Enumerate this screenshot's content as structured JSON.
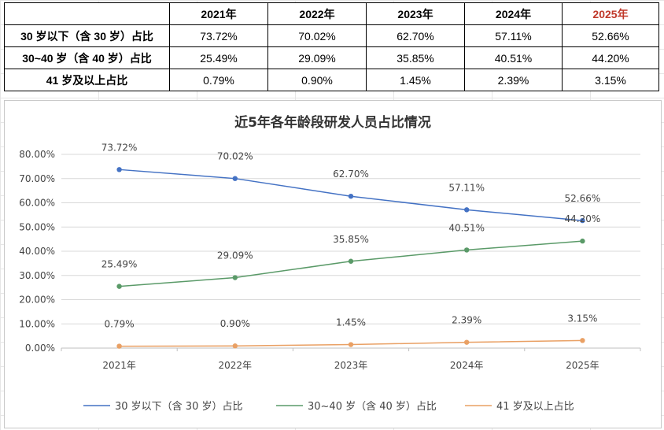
{
  "table": {
    "headers": [
      "",
      "2021年",
      "2022年",
      "2023年",
      "2024年",
      "2025年"
    ],
    "rows": [
      {
        "label": "30 岁以下（含 30 岁）占比",
        "values": [
          "73.72%",
          "70.02%",
          "62.70%",
          "57.11%",
          "52.66%"
        ]
      },
      {
        "label": "30~40 岁（含 40 岁）占比",
        "values": [
          "25.49%",
          "29.09%",
          "35.85%",
          "40.51%",
          "44.20%"
        ]
      },
      {
        "label": "41 岁及以上占比",
        "values": [
          "0.79%",
          "0.90%",
          "1.45%",
          "2.39%",
          "3.15%"
        ]
      }
    ],
    "highlight_color": "#c0392b"
  },
  "chart_data": {
    "type": "line",
    "title": "近5年各年龄段研发人员占比情况",
    "categories": [
      "2021年",
      "2022年",
      "2023年",
      "2024年",
      "2025年"
    ],
    "ylim": [
      0,
      80
    ],
    "yticks": [
      "0.00%",
      "10.00%",
      "20.00%",
      "30.00%",
      "40.00%",
      "50.00%",
      "60.00%",
      "70.00%",
      "80.00%"
    ],
    "grid": true,
    "legend_position": "bottom",
    "series": [
      {
        "name": "30 岁以下（含 30 岁）占比",
        "values": [
          73.72,
          70.02,
          62.7,
          57.11,
          52.66
        ],
        "labels": [
          "73.72%",
          "70.02%",
          "62.70%",
          "57.11%",
          "52.66%"
        ],
        "color": "#4472c4"
      },
      {
        "name": "30~40 岁（含 40 岁）占比",
        "values": [
          25.49,
          29.09,
          35.85,
          40.51,
          44.2
        ],
        "labels": [
          "25.49%",
          "29.09%",
          "35.85%",
          "40.51%",
          "44.20%"
        ],
        "color": "#5a9a68"
      },
      {
        "name": "41 岁及以上占比",
        "values": [
          0.79,
          0.9,
          1.45,
          2.39,
          3.15
        ],
        "labels": [
          "0.79%",
          "0.90%",
          "1.45%",
          "2.39%",
          "3.15%"
        ],
        "color": "#e9a064"
      }
    ]
  }
}
